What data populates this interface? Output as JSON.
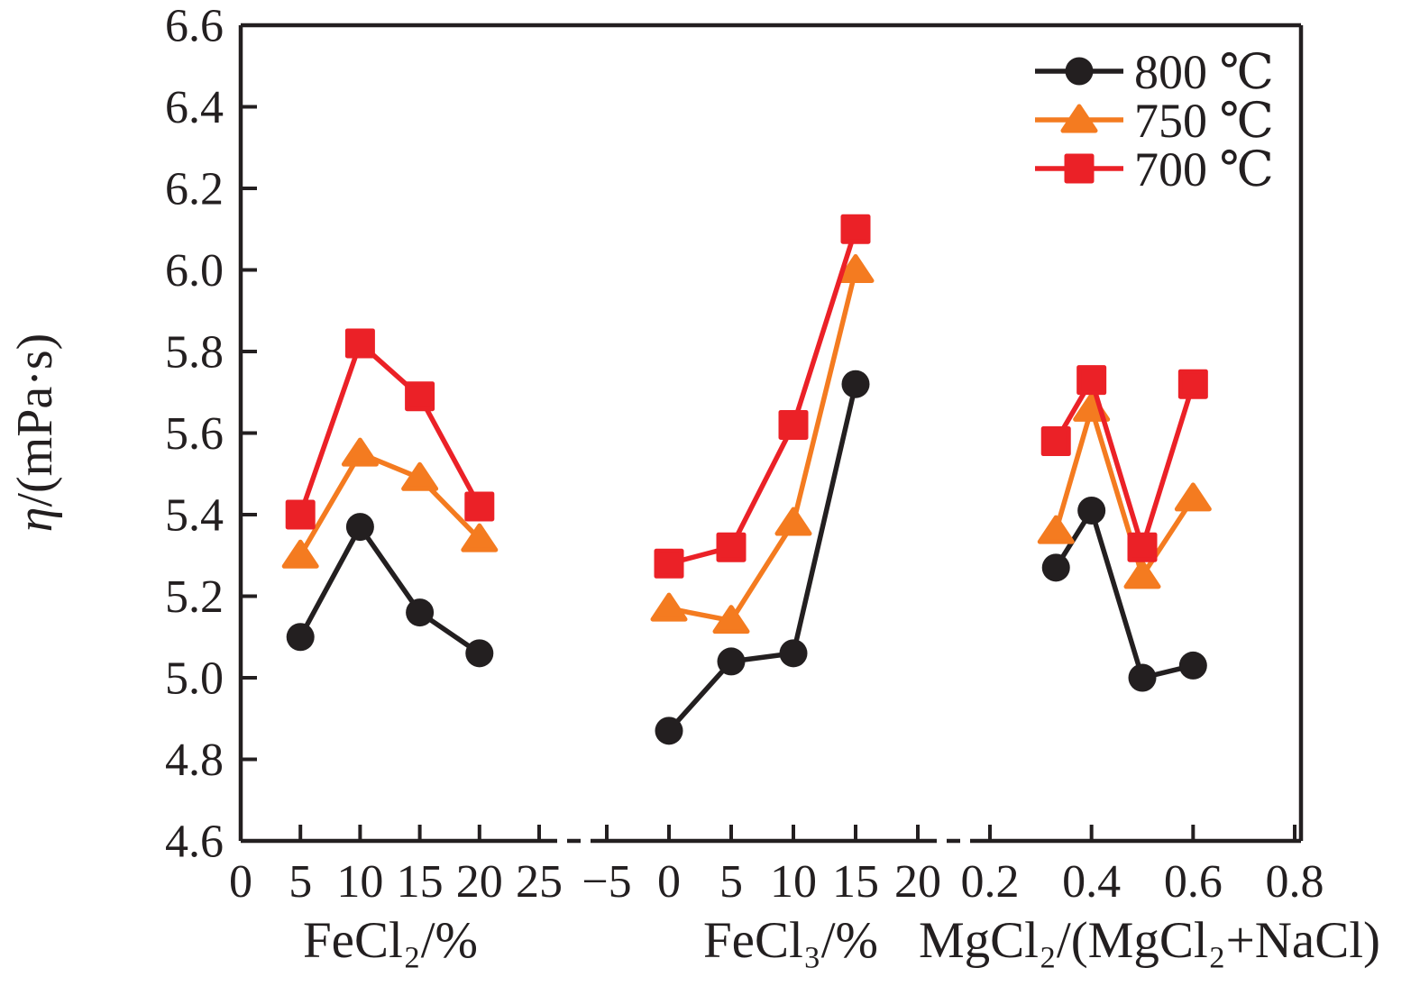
{
  "figure": {
    "background": "#FFFFFF",
    "frame_color": "#231F20",
    "y_axis": {
      "symbol": "η",
      "units": "/(mPa·s)",
      "label": "η/(mPa·s)",
      "ticks": [
        {
          "label": "4.6",
          "value": 4.6
        },
        {
          "label": "4.8",
          "value": 4.8
        },
        {
          "label": "5.0",
          "value": 5.0
        },
        {
          "label": "5.2",
          "value": 5.2
        },
        {
          "label": "5.4",
          "value": 5.4
        },
        {
          "label": "5.6",
          "value": 5.6
        },
        {
          "label": "5.8",
          "value": 5.8
        },
        {
          "label": "6.0",
          "value": 6.0
        },
        {
          "label": "6.2",
          "value": 6.2
        },
        {
          "label": "6.4",
          "value": 6.4
        },
        {
          "label": "6.6",
          "value": 6.6
        }
      ]
    },
    "x_axes": [
      {
        "title": "FeCl₂/%",
        "ticks": [
          {
            "label": "0",
            "value": 0
          },
          {
            "label": "5",
            "value": 5
          },
          {
            "label": "10",
            "value": 10
          },
          {
            "label": "15",
            "value": 15
          },
          {
            "label": "20",
            "value": 20
          },
          {
            "label": "25",
            "value": 25
          }
        ]
      },
      {
        "title": "FeCl₃/%",
        "ticks": [
          {
            "label": "−5",
            "value": -5
          },
          {
            "label": "0",
            "value": 0
          },
          {
            "label": "5",
            "value": 5
          },
          {
            "label": "10",
            "value": 10
          },
          {
            "label": "15",
            "value": 15
          },
          {
            "label": "20",
            "value": 20
          }
        ]
      },
      {
        "title": "MgCl₂/(MgCl₂+NaCl)",
        "ticks": [
          {
            "label": "0.2",
            "value": 0.2
          },
          {
            "label": "0.4",
            "value": 0.4
          },
          {
            "label": "0.6",
            "value": 0.6
          },
          {
            "label": "0.8",
            "value": 0.8
          }
        ]
      }
    ],
    "legend": {
      "position": "top-right",
      "items": [
        {
          "label": "800 ℃",
          "color": "#231F20",
          "marker": "circle"
        },
        {
          "label": "750 ℃",
          "color": "#F47B20",
          "marker": "triangle"
        },
        {
          "label": "700 ℃",
          "color": "#EB2127",
          "marker": "square"
        }
      ]
    }
  },
  "chart_data": [
    {
      "type": "line",
      "panel": "FeCl2",
      "xlabel": "FeCl₂/%",
      "ylabel": "η/(mPa·s)",
      "ylim": [
        4.6,
        6.6
      ],
      "x": [
        5,
        10,
        15,
        20
      ],
      "series": [
        {
          "name": "800 ℃",
          "marker": "circle",
          "color": "#231F20",
          "values": [
            5.1,
            5.37,
            5.16,
            5.06
          ]
        },
        {
          "name": "750 ℃",
          "marker": "triangle",
          "color": "#F47B20",
          "values": [
            5.3,
            5.55,
            5.49,
            5.34
          ]
        },
        {
          "name": "700 ℃",
          "marker": "square",
          "color": "#EB2127",
          "values": [
            5.4,
            5.82,
            5.69,
            5.42
          ]
        }
      ]
    },
    {
      "type": "line",
      "panel": "FeCl3",
      "xlabel": "FeCl₃/%",
      "ylabel": "η/(mPa·s)",
      "ylim": [
        4.6,
        6.6
      ],
      "x": [
        0,
        5,
        10,
        15
      ],
      "series": [
        {
          "name": "800 ℃",
          "marker": "circle",
          "color": "#231F20",
          "values": [
            4.87,
            5.04,
            5.06,
            5.72
          ]
        },
        {
          "name": "750 ℃",
          "marker": "triangle",
          "color": "#F47B20",
          "values": [
            5.17,
            5.14,
            5.38,
            6.0
          ]
        },
        {
          "name": "700 ℃",
          "marker": "square",
          "color": "#EB2127",
          "values": [
            5.28,
            5.32,
            5.62,
            6.1
          ]
        }
      ]
    },
    {
      "type": "line",
      "panel": "MgCl2-ratio",
      "xlabel": "MgCl₂/(MgCl₂+NaCl)",
      "ylabel": "η/(mPa·s)",
      "ylim": [
        4.6,
        6.6
      ],
      "x": [
        0.33,
        0.4,
        0.5,
        0.6
      ],
      "series": [
        {
          "name": "800 ℃",
          "marker": "circle",
          "color": "#231F20",
          "values": [
            5.27,
            5.41,
            5.0,
            5.03
          ]
        },
        {
          "name": "750 ℃",
          "marker": "triangle",
          "color": "#F47B20",
          "values": [
            5.36,
            5.66,
            5.25,
            5.44
          ]
        },
        {
          "name": "700 ℃",
          "marker": "square",
          "color": "#EB2127",
          "values": [
            5.58,
            5.73,
            5.32,
            5.72
          ]
        }
      ]
    }
  ]
}
